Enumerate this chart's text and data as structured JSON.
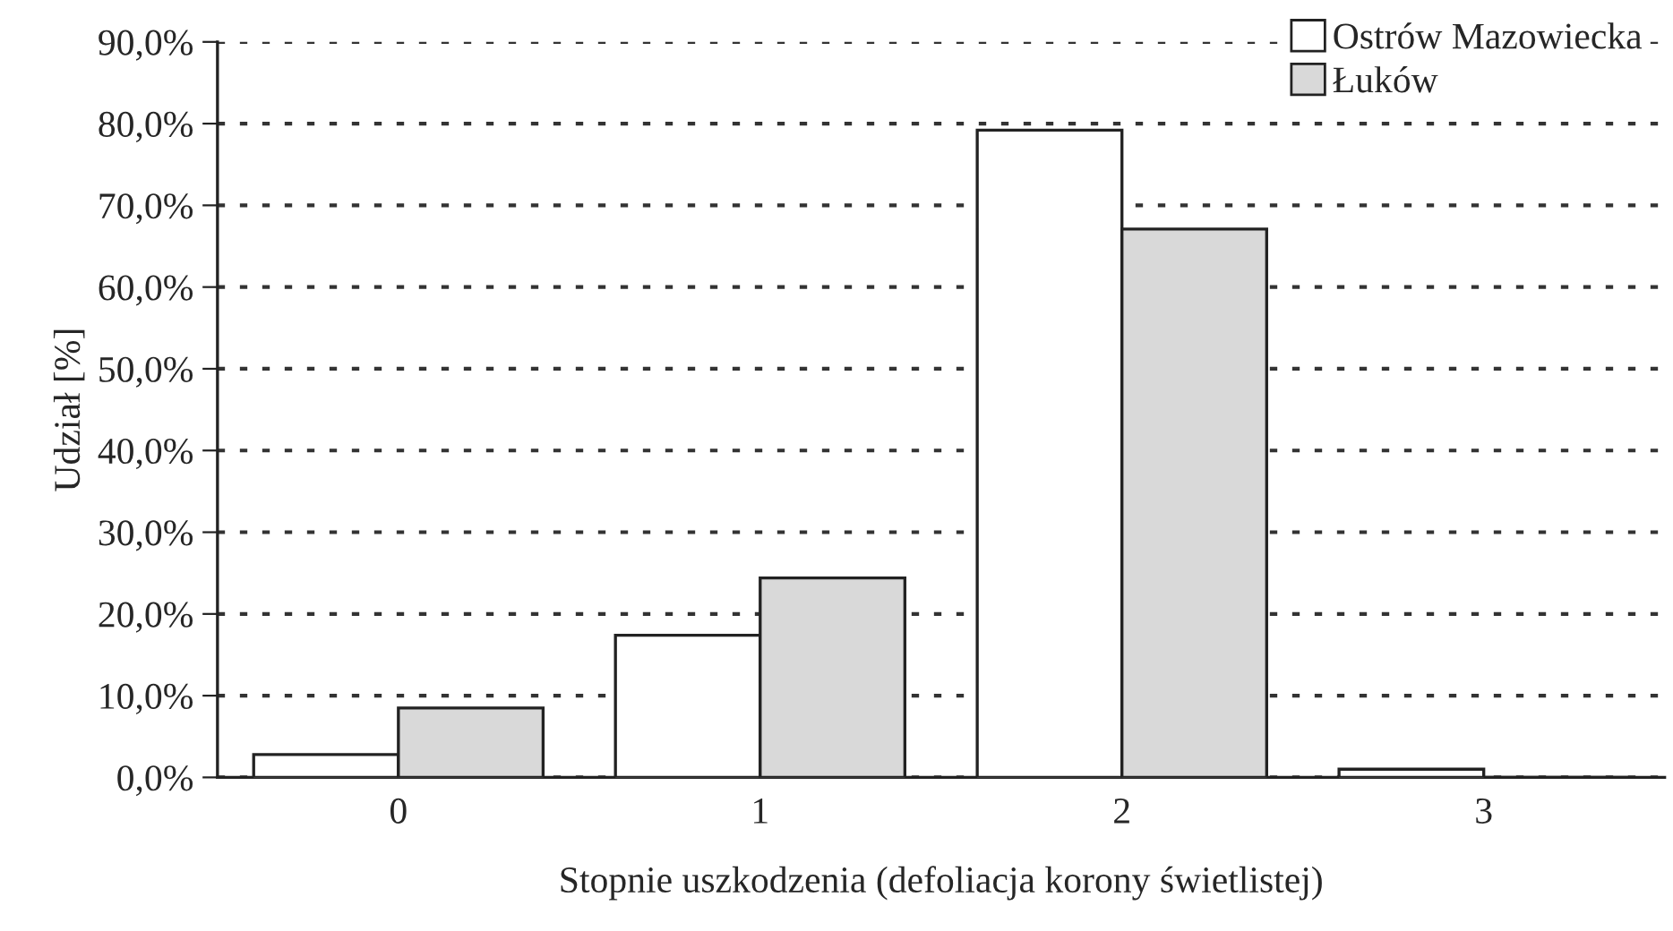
{
  "chart_data": {
    "type": "bar",
    "xlabel": "Stopnie uszkodzenia (defoliacja korony świetlistej)",
    "ylabel": "Udział [%]",
    "categories": [
      "0",
      "1",
      "2",
      "3"
    ],
    "series": [
      {
        "name": "Ostrów Mazowiecka",
        "color": "#ffffff",
        "values": [
          2.8,
          17.4,
          79.2,
          1.0
        ]
      },
      {
        "name": "Łuków",
        "color": "#d9d9d9",
        "values": [
          8.5,
          24.4,
          67.1,
          0
        ]
      }
    ],
    "ylim": [
      0,
      90
    ],
    "yticks": [
      {
        "value": 0,
        "label": "0,0%"
      },
      {
        "value": 10,
        "label": "10,0%"
      },
      {
        "value": 20,
        "label": "20,0%"
      },
      {
        "value": 30,
        "label": "30,0%"
      },
      {
        "value": 40,
        "label": "40,0%"
      },
      {
        "value": 50,
        "label": "50,0%"
      },
      {
        "value": 60,
        "label": "60,0%"
      },
      {
        "value": 70,
        "label": "70,0%"
      },
      {
        "value": 80,
        "label": "80,0%"
      },
      {
        "value": 90,
        "label": "90,0%"
      }
    ],
    "grid": "y",
    "legend": "top right"
  }
}
